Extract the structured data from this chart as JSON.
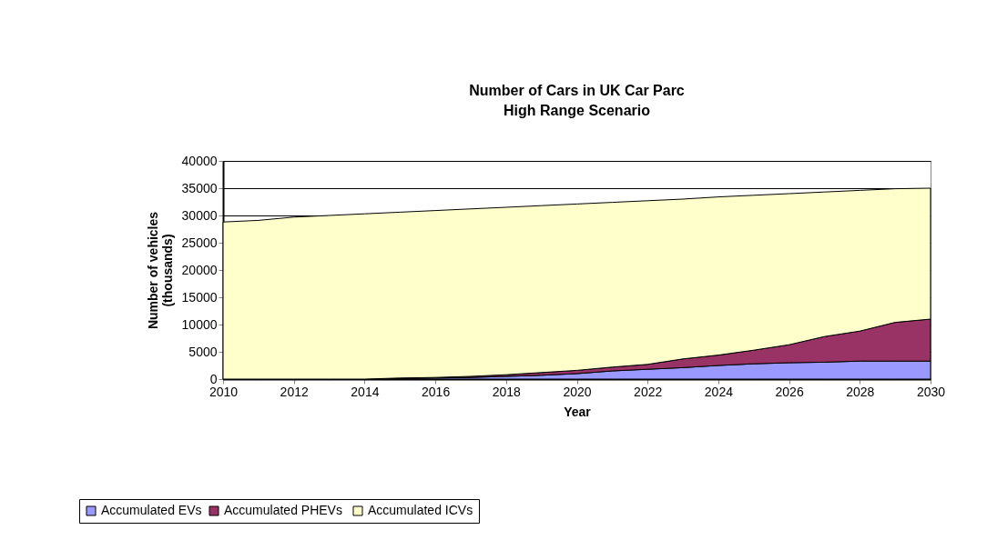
{
  "chart_data": {
    "type": "area",
    "stacked": true,
    "title": "Number of Cars in UK Car Parc",
    "subtitle": "High Range Scenario",
    "xlabel": "Year",
    "ylabel": "Number of vehicles (thousands)",
    "x": [
      2010,
      2011,
      2012,
      2013,
      2014,
      2015,
      2016,
      2017,
      2018,
      2019,
      2020,
      2021,
      2022,
      2023,
      2024,
      2025,
      2026,
      2027,
      2028,
      2029,
      2030
    ],
    "series": [
      {
        "name": "Accumulated EVs",
        "color": "#9999ff",
        "values": [
          0,
          0,
          0,
          0,
          0,
          100,
          200,
          300,
          500,
          700,
          1000,
          1500,
          1800,
          2100,
          2500,
          2800,
          3000,
          3100,
          3300,
          3300,
          3300
        ]
      },
      {
        "name": "Accumulated  PHEVs",
        "color": "#993366",
        "values": [
          0,
          0,
          0,
          0,
          0,
          100,
          100,
          200,
          300,
          500,
          600,
          700,
          900,
          1600,
          1900,
          2500,
          3300,
          4700,
          5500,
          7100,
          7700
        ]
      },
      {
        "name": "Accumulated ICVs",
        "color": "#ffffcc",
        "values": [
          28800,
          29100,
          29700,
          30000,
          30300,
          30400,
          30600,
          30700,
          30700,
          30600,
          30500,
          30200,
          30000,
          29300,
          29000,
          28400,
          27700,
          26500,
          25800,
          24500,
          24000
        ]
      }
    ],
    "xlim": [
      2010,
      2030
    ],
    "xticks": [
      2010,
      2012,
      2014,
      2016,
      2018,
      2020,
      2022,
      2024,
      2026,
      2028,
      2030
    ],
    "ylim": [
      0,
      40000
    ],
    "yticks": [
      0,
      5000,
      10000,
      15000,
      20000,
      25000,
      30000,
      35000,
      40000
    ],
    "grid": "y",
    "legend": "bottom left"
  }
}
